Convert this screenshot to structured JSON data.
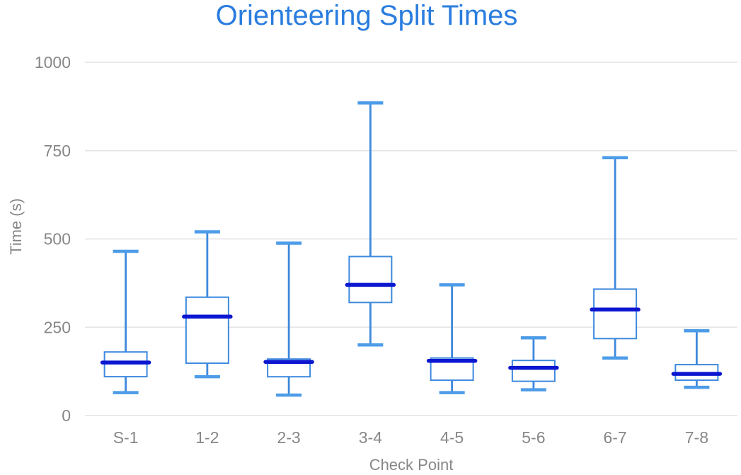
{
  "chart_data": {
    "type": "boxplot",
    "title": "Orienteering Split Times",
    "xlabel": "Check Point",
    "ylabel": "Time (s)",
    "categories": [
      "S-1",
      "1-2",
      "2-3",
      "3-4",
      "4-5",
      "5-6",
      "6-7",
      "7-8"
    ],
    "ylim": [
      0,
      1000
    ],
    "yticks": [
      0,
      250,
      500,
      750,
      1000
    ],
    "grid": true,
    "legend": "none",
    "boxes": [
      {
        "category": "S-1",
        "min": 65,
        "q1": 110,
        "median": 150,
        "q3": 180,
        "max": 465
      },
      {
        "category": "1-2",
        "min": 110,
        "q1": 148,
        "median": 280,
        "q3": 335,
        "max": 520
      },
      {
        "category": "2-3",
        "min": 58,
        "q1": 110,
        "median": 152,
        "q3": 160,
        "max": 488
      },
      {
        "category": "3-4",
        "min": 200,
        "q1": 320,
        "median": 370,
        "q3": 450,
        "max": 885
      },
      {
        "category": "4-5",
        "min": 65,
        "q1": 100,
        "median": 155,
        "q3": 163,
        "max": 370
      },
      {
        "category": "5-6",
        "min": 73,
        "q1": 97,
        "median": 135,
        "q3": 156,
        "max": 220
      },
      {
        "category": "6-7",
        "min": 163,
        "q1": 218,
        "median": 300,
        "q3": 358,
        "max": 730
      },
      {
        "category": "7-8",
        "min": 80,
        "q1": 100,
        "median": 118,
        "q3": 144,
        "max": 240
      }
    ],
    "colors": {
      "title": "#2a7dde",
      "box_stroke": "#3d89dd",
      "box_fill": "#ffffff",
      "whisker": "#3d89dd",
      "whisker_cap": "#4d9ce8",
      "median": "#0a16d0",
      "axis_text": "#878787",
      "gridline": "#e6e6e6",
      "background": "#ffffff"
    }
  }
}
